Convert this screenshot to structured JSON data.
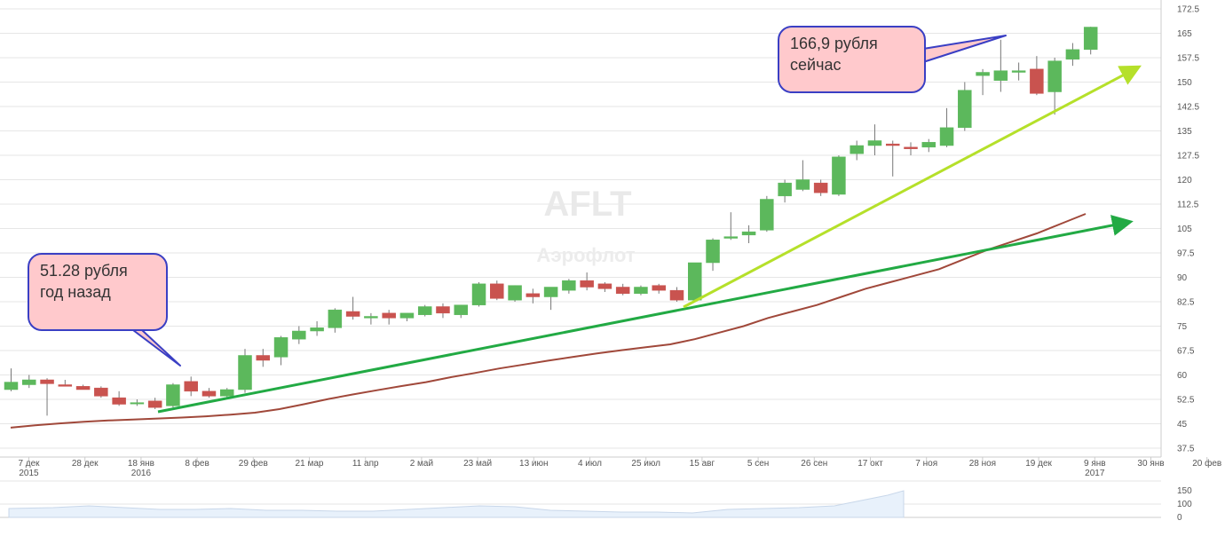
{
  "watermark": {
    "ticker": "AFLT",
    "company": "Аэрофлот"
  },
  "callouts": [
    {
      "line1": "51.28 рубля",
      "line2": "год назад"
    },
    {
      "line1": "166,9 рубля",
      "line2": "сейчас"
    }
  ],
  "colors": {
    "up": "#5cb85c",
    "down": "#c9534f",
    "ma": "#a0483a",
    "trend_lime": "#b5e02a",
    "trend_green": "#22aa44",
    "callout_fill": "#ffc9cc",
    "callout_border": "#3a3fc4",
    "navigator_fill": "#e8f1fb"
  },
  "chart_data": {
    "type": "candlestick",
    "ylim": [
      37.5,
      172.5
    ],
    "yticks": [
      37.5,
      45,
      52.5,
      60,
      67.5,
      75,
      82.5,
      90,
      97.5,
      105,
      112.5,
      120,
      127.5,
      135,
      142.5,
      150,
      157.5,
      165,
      172.5
    ],
    "xticks": [
      {
        "label": "7 дек",
        "year": "2015"
      },
      {
        "label": "28 дек",
        "year": ""
      },
      {
        "label": "18 янв",
        "year": "2016"
      },
      {
        "label": "8 фев",
        "year": ""
      },
      {
        "label": "29 фев",
        "year": ""
      },
      {
        "label": "21 мар",
        "year": ""
      },
      {
        "label": "11 апр",
        "year": ""
      },
      {
        "label": "2 май",
        "year": ""
      },
      {
        "label": "23 май",
        "year": ""
      },
      {
        "label": "13 июн",
        "year": ""
      },
      {
        "label": "4 июл",
        "year": ""
      },
      {
        "label": "25 июл",
        "year": ""
      },
      {
        "label": "15 авг",
        "year": ""
      },
      {
        "label": "5 сен",
        "year": ""
      },
      {
        "label": "26 сен",
        "year": ""
      },
      {
        "label": "17 окт",
        "year": ""
      },
      {
        "label": "7 ноя",
        "year": ""
      },
      {
        "label": "28 ноя",
        "year": ""
      },
      {
        "label": "19 дек",
        "year": ""
      },
      {
        "label": "9 янв",
        "year": "2017"
      },
      {
        "label": "30 янв",
        "year": ""
      },
      {
        "label": "20 фев",
        "year": ""
      }
    ],
    "candles": [
      {
        "o": 55.5,
        "h": 62,
        "l": 55,
        "c": 57.8
      },
      {
        "o": 57,
        "h": 60,
        "l": 56,
        "c": 58.5
      },
      {
        "o": 58.5,
        "h": 59,
        "l": 47.5,
        "c": 57.3
      },
      {
        "o": 57,
        "h": 58.5,
        "l": 56.5,
        "c": 56.5
      },
      {
        "o": 56.5,
        "h": 57,
        "l": 55.5,
        "c": 55.5
      },
      {
        "o": 56,
        "h": 56.5,
        "l": 53,
        "c": 53.5
      },
      {
        "o": 53,
        "h": 55,
        "l": 50.5,
        "c": 51
      },
      {
        "o": 51.5,
        "h": 52.5,
        "l": 50.5,
        "c": 51.5
      },
      {
        "o": 52,
        "h": 53,
        "l": 49.5,
        "c": 50
      },
      {
        "o": 50.5,
        "h": 57.5,
        "l": 50,
        "c": 57
      },
      {
        "o": 58,
        "h": 59.5,
        "l": 53.5,
        "c": 55
      },
      {
        "o": 55,
        "h": 56,
        "l": 53,
        "c": 53.5
      },
      {
        "o": 53.5,
        "h": 56,
        "l": 52.5,
        "c": 55.5
      },
      {
        "o": 55.5,
        "h": 68,
        "l": 54.5,
        "c": 66
      },
      {
        "o": 66,
        "h": 68,
        "l": 62.5,
        "c": 64.5
      },
      {
        "o": 65.5,
        "h": 72,
        "l": 63,
        "c": 71.5
      },
      {
        "o": 71,
        "h": 75,
        "l": 69.5,
        "c": 73.5
      },
      {
        "o": 73.5,
        "h": 76.5,
        "l": 72,
        "c": 74.5
      },
      {
        "o": 74.5,
        "h": 80.5,
        "l": 73,
        "c": 80
      },
      {
        "o": 79.5,
        "h": 84,
        "l": 77,
        "c": 78
      },
      {
        "o": 77.5,
        "h": 79,
        "l": 75.5,
        "c": 78
      },
      {
        "o": 79,
        "h": 80,
        "l": 75.5,
        "c": 77.5
      },
      {
        "o": 77.5,
        "h": 79,
        "l": 76.5,
        "c": 79
      },
      {
        "o": 78.5,
        "h": 81.5,
        "l": 78,
        "c": 81
      },
      {
        "o": 81,
        "h": 82,
        "l": 77.5,
        "c": 79
      },
      {
        "o": 78.5,
        "h": 81.5,
        "l": 77.5,
        "c": 81.5
      },
      {
        "o": 81.5,
        "h": 88.5,
        "l": 81,
        "c": 88
      },
      {
        "o": 88,
        "h": 89,
        "l": 83,
        "c": 83.5
      },
      {
        "o": 83,
        "h": 87.5,
        "l": 82.5,
        "c": 87.5
      },
      {
        "o": 85,
        "h": 86.5,
        "l": 82,
        "c": 84
      },
      {
        "o": 84,
        "h": 87,
        "l": 80,
        "c": 87
      },
      {
        "o": 86,
        "h": 89.5,
        "l": 85,
        "c": 89
      },
      {
        "o": 89,
        "h": 91.5,
        "l": 86,
        "c": 87
      },
      {
        "o": 88,
        "h": 88.5,
        "l": 85.5,
        "c": 86.5
      },
      {
        "o": 87,
        "h": 88,
        "l": 84.5,
        "c": 85
      },
      {
        "o": 85,
        "h": 87.5,
        "l": 84.5,
        "c": 87
      },
      {
        "o": 87.5,
        "h": 88,
        "l": 85,
        "c": 86
      },
      {
        "o": 86,
        "h": 87,
        "l": 82.5,
        "c": 83
      },
      {
        "o": 83,
        "h": 94.5,
        "l": 82.5,
        "c": 94.5
      },
      {
        "o": 94.5,
        "h": 102,
        "l": 92,
        "c": 101.5
      },
      {
        "o": 102,
        "h": 110,
        "l": 101.5,
        "c": 102.5
      },
      {
        "o": 103,
        "h": 106,
        "l": 100.5,
        "c": 104
      },
      {
        "o": 104.5,
        "h": 115,
        "l": 104,
        "c": 114
      },
      {
        "o": 115,
        "h": 120,
        "l": 113,
        "c": 119
      },
      {
        "o": 117,
        "h": 126,
        "l": 116.5,
        "c": 120
      },
      {
        "o": 119,
        "h": 120,
        "l": 115,
        "c": 116
      },
      {
        "o": 115.5,
        "h": 127.5,
        "l": 115,
        "c": 127
      },
      {
        "o": 128,
        "h": 132,
        "l": 126,
        "c": 130.5
      },
      {
        "o": 130.5,
        "h": 137,
        "l": 127.5,
        "c": 132
      },
      {
        "o": 131,
        "h": 132,
        "l": 121,
        "c": 130.5
      },
      {
        "o": 130,
        "h": 131.5,
        "l": 127.5,
        "c": 129.5
      },
      {
        "o": 130,
        "h": 132.5,
        "l": 128.5,
        "c": 131.5
      },
      {
        "o": 130.5,
        "h": 142,
        "l": 130,
        "c": 136
      },
      {
        "o": 136,
        "h": 150,
        "l": 135,
        "c": 147.5
      },
      {
        "o": 152,
        "h": 154,
        "l": 146,
        "c": 153
      },
      {
        "o": 150.5,
        "h": 163,
        "l": 147,
        "c": 153.5
      },
      {
        "o": 153,
        "h": 156,
        "l": 150.5,
        "c": 153.5
      },
      {
        "o": 154,
        "h": 158,
        "l": 146,
        "c": 146.5
      },
      {
        "o": 147,
        "h": 157.5,
        "l": 140,
        "c": 156.5
      },
      {
        "o": 157,
        "h": 162,
        "l": 155,
        "c": 160
      },
      {
        "o": 160,
        "h": 167,
        "l": 158.5,
        "c": 166.9
      }
    ],
    "moving_average": [
      43.8,
      44.5,
      45.1,
      45.6,
      46,
      46.3,
      46.6,
      46.9,
      47.3,
      47.8,
      48.4,
      49.5,
      51,
      52.6,
      54,
      55.3,
      56.6,
      57.8,
      59.3,
      60.6,
      62,
      63.2,
      64.4,
      65.5,
      66.6,
      67.6,
      68.5,
      69.4,
      71,
      73,
      75,
      77.5,
      79.5,
      81.5,
      84,
      86.5,
      88.5,
      90.5,
      92.5,
      95.5,
      98.5,
      101,
      103.5,
      106.5,
      109.5
    ]
  }
}
